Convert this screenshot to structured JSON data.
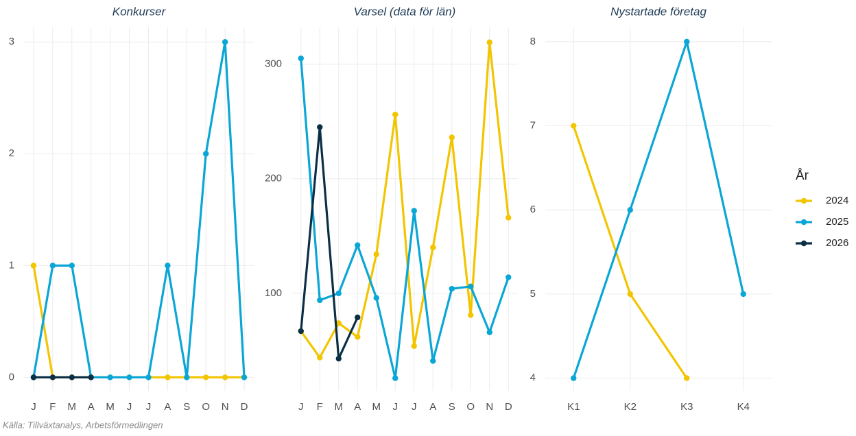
{
  "chart_data": [
    {
      "type": "line",
      "title": "Konkurser",
      "categories": [
        "J",
        "F",
        "M",
        "A",
        "M",
        "J",
        "J",
        "A",
        "S",
        "O",
        "N",
        "D"
      ],
      "series": [
        {
          "name": "2024",
          "color": "#f2c500",
          "values": [
            1,
            0,
            0,
            0,
            0,
            0,
            0,
            0,
            0,
            0,
            0,
            0
          ]
        },
        {
          "name": "2025",
          "color": "#0aa6d6",
          "values": [
            0,
            1,
            1,
            0,
            0,
            0,
            0,
            1,
            0,
            2,
            3,
            0
          ]
        },
        {
          "name": "2026",
          "color": "#0b2f45",
          "values": [
            0,
            0,
            0,
            0,
            null,
            null,
            null,
            null,
            null,
            null,
            null,
            null
          ]
        }
      ],
      "ylim": [
        -0.12,
        3.13
      ],
      "yticks": [
        0,
        1,
        2,
        3
      ],
      "grid": true
    },
    {
      "type": "line",
      "title": "Varsel (data för län)",
      "categories": [
        "J",
        "F",
        "M",
        "A",
        "M",
        "J",
        "J",
        "A",
        "S",
        "O",
        "N",
        "D"
      ],
      "series": [
        {
          "name": "2024",
          "color": "#f2c500",
          "values": [
            67,
            44,
            74,
            62,
            134,
            256,
            54,
            140,
            236,
            81,
            319,
            166
          ]
        },
        {
          "name": "2025",
          "color": "#0aa6d6",
          "values": [
            305,
            94,
            100,
            142,
            96,
            26,
            172,
            41,
            104,
            106,
            66,
            114
          ]
        },
        {
          "name": "2026",
          "color": "#0b2f45",
          "values": [
            67,
            245,
            43,
            79,
            null,
            null,
            null,
            null,
            null,
            null,
            null,
            null
          ]
        }
      ],
      "ylim": [
        15,
        332
      ],
      "yticks": [
        100,
        200,
        300
      ],
      "grid": true
    },
    {
      "type": "line",
      "title": "Nystartade företag",
      "categories": [
        "K1",
        "K2",
        "K3",
        "K4"
      ],
      "series": [
        {
          "name": "2024",
          "color": "#f2c500",
          "values": [
            7,
            5,
            4,
            null
          ]
        },
        {
          "name": "2025",
          "color": "#0aa6d6",
          "values": [
            4,
            6,
            8,
            5
          ]
        }
      ],
      "ylim": [
        3.85,
        8.17
      ],
      "yticks": [
        4,
        5,
        6,
        7,
        8
      ],
      "grid": true
    }
  ],
  "legend": {
    "title": "År",
    "position": "right"
  },
  "source": "Källa: Tillväxtanalys, Arbetsförmedlingen"
}
